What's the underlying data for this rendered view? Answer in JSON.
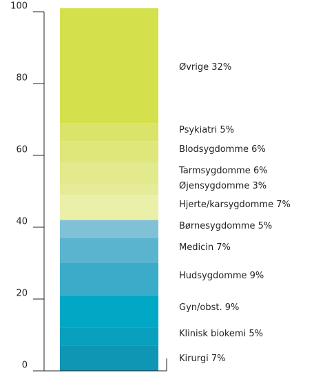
{
  "chart_data": {
    "type": "stacked_bar",
    "ylim": [
      0,
      100
    ],
    "yticks": [
      0,
      20,
      40,
      60,
      80,
      100
    ],
    "series": [
      {
        "name": "Kirurgi",
        "values": [
          7
        ],
        "value_labels": [
          "7%"
        ],
        "color": "#0e96b4"
      },
      {
        "name": "Klinisk biokemi",
        "values": [
          5
        ],
        "value_labels": [
          "5%"
        ],
        "color": "#099fbe"
      },
      {
        "name": "Gyn/obst.",
        "values": [
          9
        ],
        "value_labels": [
          "9%"
        ],
        "color": "#00a8c6"
      },
      {
        "name": "Hudsygdomme",
        "values": [
          9
        ],
        "value_labels": [
          "9%"
        ],
        "color": "#3aabc8"
      },
      {
        "name": "Medicin",
        "values": [
          7
        ],
        "value_labels": [
          "7%"
        ],
        "color": "#5bb4cf"
      },
      {
        "name": "Børnesygdomme",
        "values": [
          5
        ],
        "value_labels": [
          "5%"
        ],
        "color": "#80c1d8"
      },
      {
        "name": "Hjerte/karsygdomme",
        "values": [
          7
        ],
        "value_labels": [
          "7%"
        ],
        "color": "#ebf0a9"
      },
      {
        "name": "Øjensygdomme",
        "values": [
          3
        ],
        "value_labels": [
          "3%"
        ],
        "color": "#e6eb97"
      },
      {
        "name": "Tarmsygdomme",
        "values": [
          6
        ],
        "value_labels": [
          "6%"
        ],
        "color": "#e3e98d"
      },
      {
        "name": "Blodsygdomme",
        "values": [
          6
        ],
        "value_labels": [
          "6%"
        ],
        "color": "#dfe67a"
      },
      {
        "name": "Psykiatri",
        "values": [
          5
        ],
        "value_labels": [
          "5%"
        ],
        "color": "#dae36a"
      },
      {
        "name": "Øvrige",
        "values": [
          32
        ],
        "value_labels": [
          "32%"
        ],
        "color": "#d4e04c"
      }
    ]
  }
}
